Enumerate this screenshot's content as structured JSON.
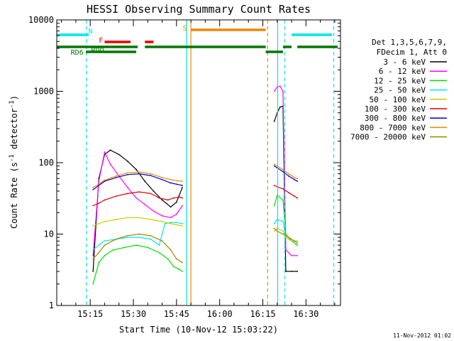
{
  "chart_data": {
    "type": "line",
    "title": "HESSI Observing Summary Count Rates",
    "xlabel": "Start Time (10-Nov-12 15:03:22)",
    "ylabel": "Count Rate (s⁻¹ detector⁻¹)",
    "ylabel_main": "Count Rate (s",
    "ylabel_sup1": "-1",
    "ylabel_mid": " detector",
    "ylabel_sup2": "-1",
    "ylabel_end": ")",
    "y_scale": "log",
    "ylim": [
      1,
      10000
    ],
    "xlim": [
      "15:03:22",
      "16:42:00"
    ],
    "x_ticks": [
      "15:15",
      "15:30",
      "15:45",
      "16:00",
      "16:15",
      "16:30"
    ],
    "y_ticks": [
      "1",
      "10",
      "100",
      "1000",
      "10000"
    ],
    "legend": {
      "position": "right",
      "header": [
        "Det 1,3,5,6,7,9,",
        "FDecim 1, Att 0"
      ]
    },
    "series": [
      {
        "name": "3 - 6 keV",
        "color": "#000000",
        "x": [
          "15:16",
          "15:18",
          "15:20",
          "15:22",
          "15:25",
          "15:28",
          "15:31",
          "15:34",
          "15:37",
          "15:40",
          "15:43",
          "15:45",
          "15:47",
          "16:19",
          "16:20",
          "16:21",
          "16:22",
          "16:23",
          "16:25",
          "16:27"
        ],
        "y": [
          3,
          60,
          130,
          150,
          130,
          105,
          80,
          55,
          40,
          30,
          24,
          28,
          45,
          380,
          500,
          600,
          620,
          3,
          3,
          3
        ]
      },
      {
        "name": "6 - 12 keV",
        "color": "#ff00ff",
        "x": [
          "15:16",
          "15:18",
          "15:20",
          "15:22",
          "15:25",
          "15:28",
          "15:31",
          "15:34",
          "15:37",
          "15:40",
          "15:43",
          "15:45",
          "15:47",
          "16:19",
          "16:20",
          "16:21",
          "16:22",
          "16:23",
          "16:25",
          "16:27"
        ],
        "y": [
          5,
          55,
          140,
          95,
          65,
          45,
          32,
          26,
          21,
          18,
          17,
          19,
          25,
          1000,
          1150,
          1180,
          1000,
          6,
          5,
          5
        ]
      },
      {
        "name": "12 - 25 keV",
        "color": "#00dd00",
        "x": [
          "15:16",
          "15:18",
          "15:20",
          "15:23",
          "15:27",
          "15:31",
          "15:35",
          "15:39",
          "15:42",
          "15:44",
          "15:46",
          "15:47",
          "16:19",
          "16:20",
          "16:22",
          "16:23",
          "16:25",
          "16:27"
        ],
        "y": [
          2,
          4,
          5,
          6,
          6.5,
          7,
          6.5,
          5.5,
          4.5,
          3.5,
          3.2,
          3,
          25,
          35,
          30,
          10,
          8,
          7
        ]
      },
      {
        "name": "25 - 50 keV",
        "color": "#00e5ee",
        "x": [
          "15:16",
          "15:18",
          "15:20",
          "15:24",
          "15:28",
          "15:32",
          "15:36",
          "15:39",
          "15:41",
          "15:43",
          "15:45",
          "15:47",
          "16:19",
          "16:20",
          "16:22",
          "16:23",
          "16:25",
          "16:27"
        ],
        "y": [
          6,
          7,
          8,
          8.5,
          9,
          9,
          8.5,
          7,
          14,
          14.5,
          14.5,
          14,
          14,
          16,
          15,
          9,
          8,
          8
        ]
      },
      {
        "name": "50 - 100 keV",
        "color": "#cccc00",
        "x": [
          "15:16",
          "15:18",
          "15:20",
          "15:24",
          "15:28",
          "15:32",
          "15:36",
          "15:40",
          "15:43",
          "15:45",
          "15:47",
          "16:19",
          "16:20",
          "16:22",
          "16:23",
          "16:25",
          "16:27"
        ],
        "y": [
          13,
          14,
          15,
          16,
          17,
          17,
          16,
          15,
          14,
          13.5,
          13,
          11,
          12,
          11,
          9,
          8,
          8
        ]
      },
      {
        "name": "100 - 300 keV",
        "color": "#dd0000",
        "x": [
          "15:16",
          "15:18",
          "15:20",
          "15:24",
          "15:28",
          "15:32",
          "15:36",
          "15:39",
          "15:42",
          "15:44",
          "15:46",
          "15:47",
          "16:19",
          "16:20",
          "16:22",
          "16:24",
          "16:26",
          "16:27"
        ],
        "y": [
          25,
          27,
          30,
          34,
          37,
          39,
          37,
          32,
          30,
          32,
          33,
          32,
          48,
          46,
          43,
          38,
          34,
          32
        ]
      },
      {
        "name": "300 - 800 keV",
        "color": "#0000cc",
        "x": [
          "15:16",
          "15:18",
          "15:20",
          "15:24",
          "15:28",
          "15:32",
          "15:36",
          "15:40",
          "15:43",
          "15:45",
          "15:47",
          "16:19",
          "16:20",
          "16:22",
          "16:24",
          "16:26",
          "16:27"
        ],
        "y": [
          42,
          48,
          55,
          62,
          68,
          70,
          66,
          58,
          52,
          50,
          48,
          90,
          85,
          75,
          65,
          58,
          55
        ]
      },
      {
        "name": "800 - 7000 keV",
        "color": "#ee8800",
        "x": [
          "15:16",
          "15:18",
          "15:20",
          "15:24",
          "15:28",
          "15:32",
          "15:36",
          "15:40",
          "15:43",
          "15:45",
          "15:47",
          "16:19",
          "16:20",
          "16:22",
          "16:24",
          "16:26",
          "16:27"
        ],
        "y": [
          45,
          50,
          57,
          65,
          72,
          74,
          70,
          62,
          58,
          56,
          55,
          95,
          90,
          80,
          70,
          62,
          60
        ]
      },
      {
        "name": "7000 - 20000 keV",
        "color": "#998800",
        "x": [
          "15:16",
          "15:18",
          "15:20",
          "15:24",
          "15:28",
          "15:32",
          "15:36",
          "15:40",
          "15:43",
          "15:45",
          "15:47",
          "16:19",
          "16:20",
          "16:22",
          "16:24",
          "16:26",
          "16:27"
        ],
        "y": [
          4.5,
          5.5,
          7,
          8.5,
          9.5,
          10,
          9.5,
          8,
          6,
          4.5,
          4,
          12,
          11,
          10,
          9,
          8,
          7.5
        ]
      }
    ],
    "flags": [
      {
        "label": "N",
        "color": "#00e5ee",
        "segments": [
          [
            "15:03:22",
            "15:13:30"
          ],
          [
            "15:13:30",
            "15:14:30"
          ],
          [
            "16:25",
            "16:39"
          ]
        ]
      },
      {
        "label": "F",
        "color": "#ee0000",
        "segments": [
          [
            "15:20",
            "15:29"
          ],
          [
            "15:34",
            "15:37"
          ]
        ]
      },
      {
        "label": "S",
        "color": "#ee8800",
        "segments": [
          [
            "15:50",
            "16:16"
          ]
        ]
      },
      {
        "label": "RDO",
        "color": "#007700",
        "segments": [
          [
            "15:03:22",
            "15:31:30"
          ],
          [
            "15:34",
            "16:16"
          ],
          [
            "16:22",
            "16:25"
          ],
          [
            "16:27",
            "16:41"
          ]
        ]
      },
      {
        "label": "RD6",
        "color": "#007700",
        "segments": [
          [
            "15:13:30",
            "15:31"
          ],
          [
            "16:16",
            "16:22"
          ]
        ]
      }
    ],
    "vlines": [
      {
        "time": "15:13:40",
        "color": "#00e5ee",
        "style": "dashed"
      },
      {
        "time": "15:48:30",
        "color": "#00e5ee",
        "style": "solid"
      },
      {
        "time": "15:50:00",
        "color": "#ee8800",
        "style": "solid"
      },
      {
        "time": "16:16:40",
        "color": "#ee8800",
        "style": "dashed"
      },
      {
        "time": "16:20:10",
        "color": "#00e5ee",
        "style": "solid"
      },
      {
        "time": "16:22:40",
        "color": "#00e5ee",
        "style": "dashed"
      },
      {
        "time": "16:39:40",
        "color": "#00e5ee",
        "style": "dashed"
      }
    ],
    "footer": "11-Nov-2012 01:02"
  }
}
